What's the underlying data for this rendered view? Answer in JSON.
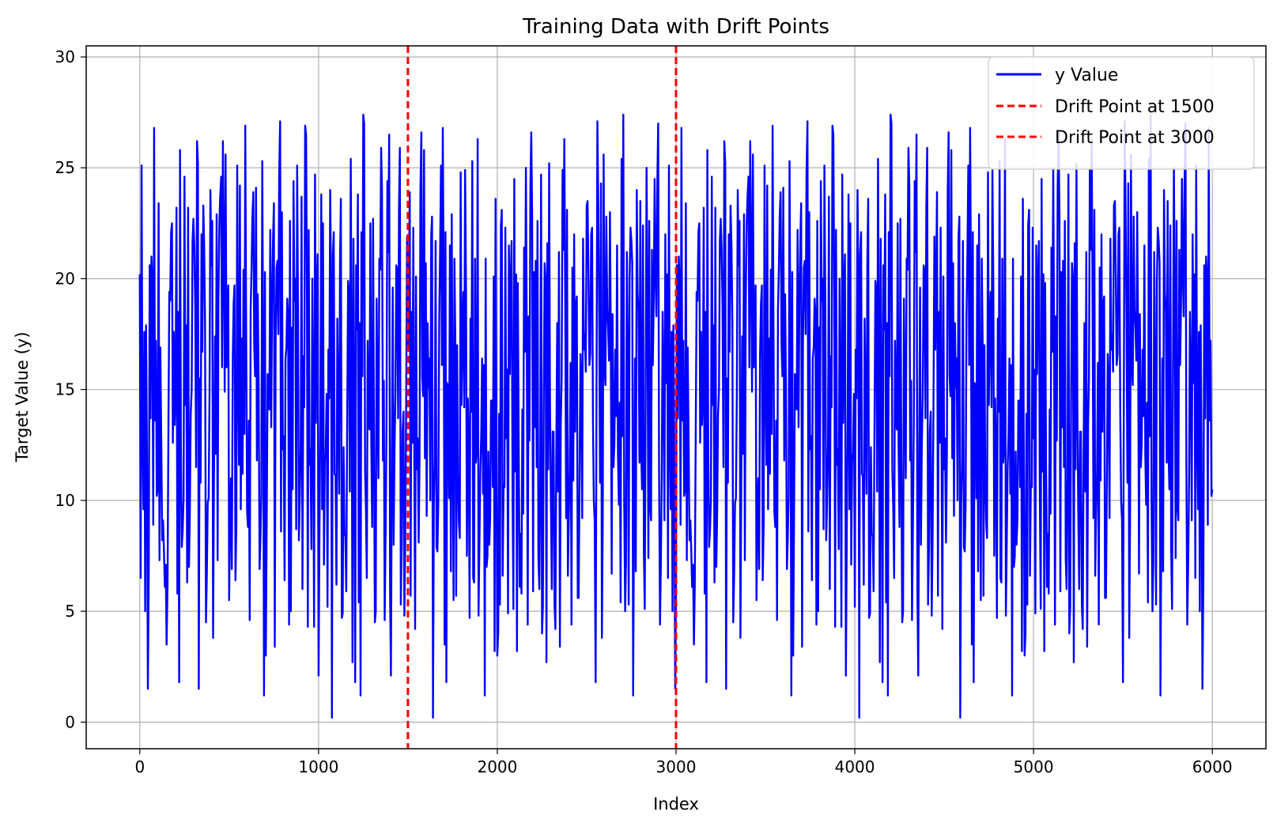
{
  "chart_data": {
    "type": "line",
    "title": "Training Data with Drift Points",
    "xlabel": "Index",
    "ylabel": "Target Value (y)",
    "xlim": [
      -300,
      6300
    ],
    "ylim": [
      -1.2,
      30.5
    ],
    "x_ticks": [
      0,
      1000,
      2000,
      3000,
      4000,
      5000,
      6000
    ],
    "y_ticks": [
      0,
      5,
      10,
      15,
      20,
      25,
      30
    ],
    "grid": true,
    "legend_position": "top-right",
    "series": [
      {
        "name": "y Value",
        "color": "#0000ff",
        "style": "solid",
        "x_start": 0,
        "x_end": 6000,
        "x_step": 5,
        "values": [
          20.2,
          4.8,
          25.1,
          14.0,
          9.6,
          16.8,
          5.0,
          23.9,
          12.1,
          18.5,
          6.5,
          22.3,
          13.7,
          4.2,
          19.8,
          11.4,
          26.8,
          8.1,
          17.2,
          24.0,
          10.5,
          15.6,
          7.3,
          25.8,
          12.9,
          20.7,
          9.1,
          18.0,
          6.1,
          16.4,
          3.5,
          21.9,
          13.2,
          0.2,
          19.0,
          11.8,
          22.5,
          7.9,
          17.6,
          9.8,
          14.8,
          21.2,
          5.8,
          16.1,
          1.8,
          19.6,
          12.4,
          22.1,
          8.7,
          15.3,
          24.6,
          10.1,
          17.9,
          6.8,
          23.2,
          13.4,
          9.4,
          20.9,
          15.0,
          5.7,
          22.7,
          11.1,
          18.7,
          8.3,
          26.2,
          14.3,
          1.5,
          19.4,
          10.8,
          24.9,
          16.7,
          7.5,
          21.5,
          12.6,
          4.5,
          18.2,
          9.9,
          25.3,
          14.9,
          6.3,
          20.6,
          11.7,
          3.8,
          26.3,
          17.4,
          8.0,
          22.9,
          13.0,
          19.1,
          10.3,
          23.7,
          1.2,
          16.0,
          7.0,
          21.0,
          12.2,
          25.6,
          9.2,
          18.3,
          14.5,
          5.5,
          20.1,
          11.0,
          23.6,
          16.5,
          3.0,
          19.7,
          13.9,
          8.9,
          22.4,
          15.2,
          6.6,
          24.2,
          10.6,
          17.3,
          12.8,
          20.4,
          4.9,
          26.9,
          15.7,
          9.5,
          21.7,
          13.6,
          5.1,
          18.6,
          11.3,
          22.8,
          3.2,
          17.0,
          12.0,
          24.1,
          8.5,
          19.3,
          14.1,
          6.9,
          21.4,
          10.2,
          25.0,
          16.3,
          4.4,
          20.3,
          12.7,
          9.0,
          26.6,
          15.4,
          5.9,
          22.2,
          13.3,
          18.9,
          11.5,
          23.4,
          7.4,
          17.1,
          10.9,
          20.8,
          4.0,
          24.8,
          14.7,
          8.6,
          19.9,
          12.3,
          21.6,
          6.4,
          25.2,
          16.9,
          9.7,
          18.4,
          13.1,
          22.6,
          5.3,
          17.8,
          11.9,
          24.4,
          10.4,
          20.0,
          3.4,
          25.1,
          15.5,
          8.2,
          21.3,
          12.5,
          19.2,
          6.0,
          23.1,
          14.2,
          9.3,
          26.5,
          16.2,
          4.3,
          20.5,
          11.6,
          22.0,
          7.8,
          18.8,
          13.8,
          5.6,
          24.7,
          10.7,
          19.5,
          15.1,
          2.1,
          21.8,
          13.5,
          17.5,
          9.6,
          23.3,
          7.1,
          20.2,
          12.1,
          16.6,
          5.2,
          22.3,
          14.6,
          10.0,
          19.6,
          1.8,
          21.1,
          27.1,
          11.2,
          18.1,
          6.2,
          24.3,
          14.4,
          9.2,
          20.7,
          15.9,
          4.7,
          22.8,
          12.4,
          17.7,
          8.4,
          23.0,
          13.0,
          6.7,
          19.4,
          11.5,
          25.4,
          16.8,
          2.7,
          21.5,
          14.0,
          9.8,
          20.6,
          5.4,
          23.8,
          12.9,
          18.0,
          10.1,
          22.1,
          7.2,
          27.4,
          15.8,
          11.4,
          19.9,
          6.5,
          21.7,
          13.7,
          1.2,
          22.5,
          16.4,
          8.8,
          24.0,
          12.6,
          18.5,
          5.0,
          23.5,
          14.3,
          10.5,
          20.9,
          7.7,
          25.9,
          15.6,
          11.8,
          19.1,
          4.6,
          22.6,
          13.4,
          9.1,
          21.2,
          16.1,
          6.0,
          24.5,
          12.2,
          18.3,
          8.0,
          27.0,
          14.8,
          4.4,
          20.4,
          11.0,
          23.2,
          15.3,
          5.3,
          22.0,
          13.1
        ],
        "seed_note_removed": true
      },
      {
        "name": "Drift Point at 1500",
        "color": "#ff0000",
        "style": "dashed",
        "x": 1500
      },
      {
        "name": "Drift Point at 3000",
        "color": "#ff0000",
        "style": "dashed",
        "x": 3000
      }
    ]
  }
}
